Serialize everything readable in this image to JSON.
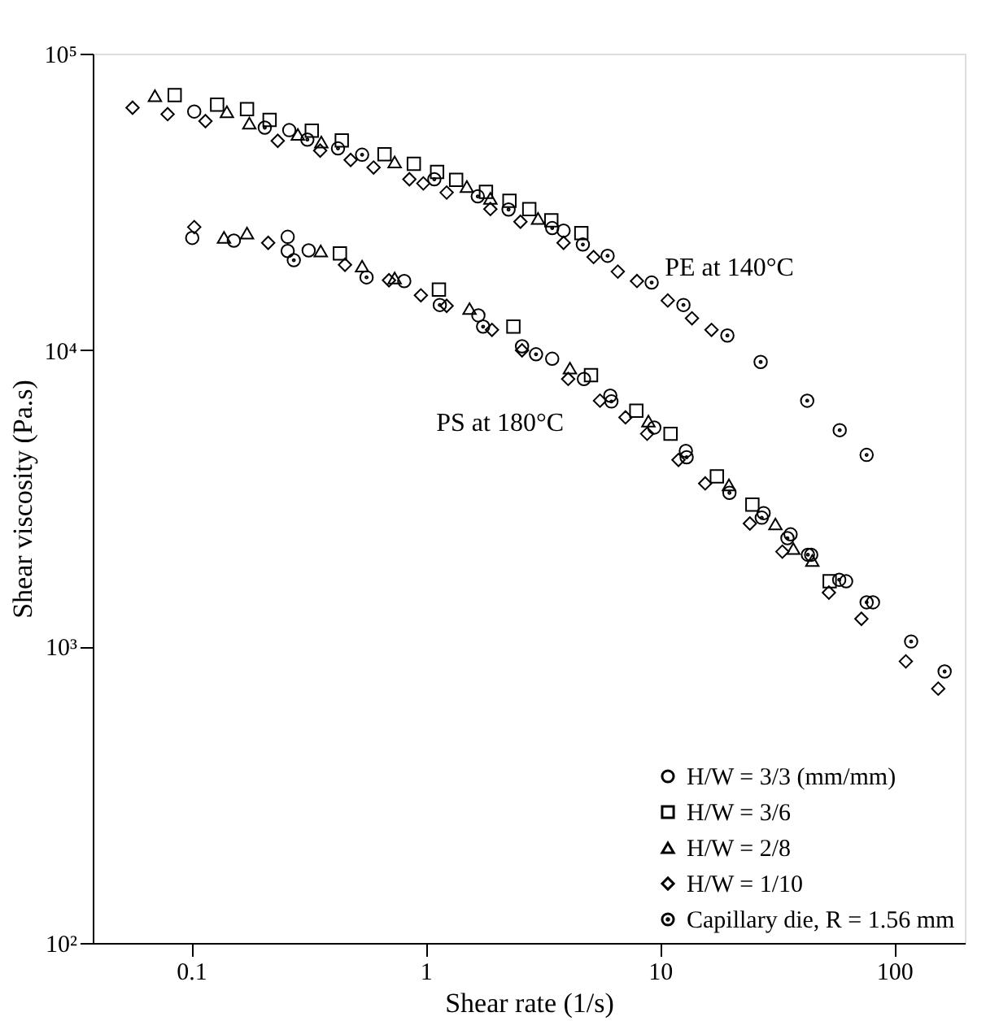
{
  "chart_data": {
    "type": "scatter",
    "xlabel": "Shear rate (1/s)",
    "ylabel": "Shear viscosity (Pa.s)",
    "log": "xy",
    "grid": false,
    "legend": "bottom right",
    "xlim": [
      0.038,
      200
    ],
    "xticks": [
      0.1,
      1,
      10,
      100
    ],
    "ylim": [
      100,
      100000
    ],
    "yticks": [
      {
        "value": 100,
        "label": "10²"
      },
      {
        "value": 1000,
        "label": "10³"
      },
      {
        "value": 10000,
        "label": "10⁴"
      },
      {
        "value": 100000,
        "label": "10⁵"
      }
    ],
    "annotations": [
      "PE at 140°C",
      "PS at 180°C"
    ],
    "series": [
      {
        "name": "H/W = 3/3 (mm/mm)",
        "color": "#000000",
        "marker": "circle",
        "x": [
          0.103,
          0.262,
          3.88,
          0.101,
          0.152,
          0.258,
          0.258,
          0.317,
          0.811,
          1.68,
          2.58,
          3.47,
          4.74,
          6.14,
          9.46,
          12.9,
          27.7,
          36.1,
          44.2,
          62.3,
          81.1
        ],
        "values": [
          63800,
          55200,
          25300,
          23900,
          23400,
          24100,
          21600,
          21700,
          17100,
          13100,
          10300,
          9350,
          7990,
          7020,
          5480,
          4570,
          2820,
          2390,
          2040,
          1660,
          1410
        ]
      },
      {
        "name": "H/W = 3/6",
        "color": "#000000",
        "marker": "square",
        "x": [
          0.085,
          0.129,
          0.173,
          0.216,
          0.327,
          0.439,
          0.668,
          0.891,
          1.12,
          1.35,
          1.81,
          2.28,
          2.77,
          3.44,
          4.62,
          0.431,
          1.14,
          2.37,
          5.08,
          7.93,
          11.1,
          17.5,
          24.8,
          53.0
        ],
        "values": [
          72500,
          67300,
          65000,
          59800,
          55000,
          51000,
          45800,
          42500,
          39900,
          37500,
          34200,
          31900,
          29900,
          27400,
          24800,
          21200,
          16000,
          12000,
          8230,
          6240,
          5220,
          3750,
          3010,
          1660
        ]
      },
      {
        "name": "H/W = 2/8",
        "color": "#000000",
        "marker": "triangle",
        "x": [
          0.07,
          0.142,
          0.177,
          0.285,
          0.359,
          0.738,
          1.5,
          1.89,
          3.02,
          0.138,
          0.173,
          0.357,
          0.536,
          0.738,
          1.54,
          4.13,
          8.93,
          19.7,
          31.1,
          37.1,
          44.7
        ],
        "values": [
          72100,
          63700,
          58300,
          53400,
          50300,
          43100,
          35600,
          32500,
          27800,
          24000,
          24800,
          21600,
          19200,
          17500,
          13800,
          8690,
          5760,
          3510,
          2590,
          2140,
          1950
        ]
      },
      {
        "name": "H/W = 1/10",
        "color": "#000000",
        "marker": "diamond",
        "x": [
          0.0562,
          0.0793,
          0.115,
          0.234,
          0.355,
          0.479,
          0.6,
          0.853,
          0.978,
          1.23,
          1.89,
          2.54,
          3.88,
          5.21,
          6.61,
          7.98,
          10.8,
          13.7,
          16.6,
          0.103,
          0.213,
          0.453,
          0.698,
          0.955,
          1.23,
          1.92,
          2.58,
          4.06,
          5.55,
          7.13,
          8.82,
          12.0,
          15.6,
          24.2,
          33.3,
          52.6,
          72.4,
          112,
          154
        ],
        "values": [
          65700,
          62500,
          59200,
          50800,
          47100,
          43800,
          41300,
          37700,
          36500,
          34000,
          29900,
          27100,
          23000,
          20600,
          18400,
          17100,
          14700,
          12800,
          11700,
          26000,
          23000,
          19400,
          17200,
          15300,
          14100,
          11700,
          9980,
          7990,
          6750,
          5930,
          5220,
          4260,
          3550,
          2600,
          2090,
          1520,
          1240,
          891,
          721
        ]
      },
      {
        "name": "Capillary die, R = 1.56 mm",
        "color": "#000000",
        "marker": "circle",
        "x": [
          0.206,
          0.313,
          0.423,
          0.536,
          1.09,
          1.67,
          2.26,
          3.47,
          4.69,
          5.98,
          9.22,
          12.6,
          19.4,
          26.9,
          42.5,
          58.5,
          76.2,
          0.274,
          0.56,
          1.15,
          1.76,
          2.96,
          6.21,
          13.0,
          19.8,
          27.2,
          35.0,
          42.8,
          58.2,
          76.2,
          118,
          164
        ],
        "values": [
          56300,
          51300,
          47900,
          45600,
          37700,
          33000,
          29800,
          25800,
          22700,
          20800,
          16900,
          14200,
          11200,
          9120,
          6750,
          5370,
          4430,
          20100,
          17600,
          14200,
          12000,
          9680,
          6710,
          4350,
          3300,
          2720,
          2320,
          2040,
          1680,
          1410,
          1040,
          824
        ]
      }
    ]
  }
}
